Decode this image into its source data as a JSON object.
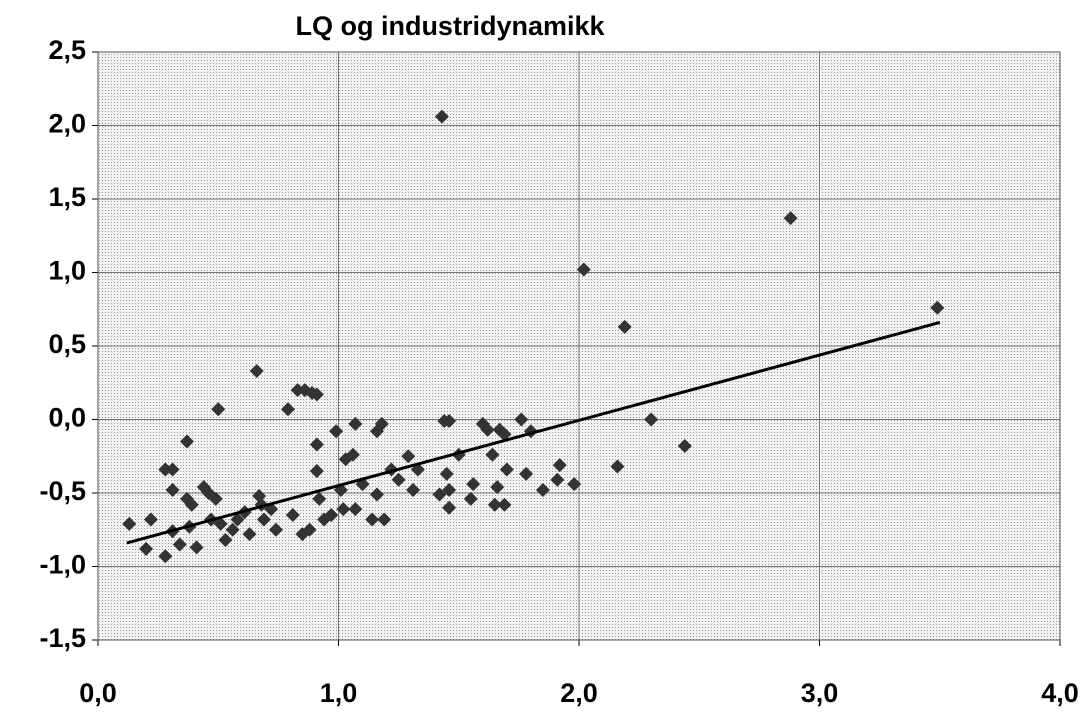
{
  "chart_data": {
    "type": "scatter",
    "title": "LQ og industridynamikk",
    "x": [
      0.13,
      0.2,
      0.22,
      0.28,
      0.31,
      0.28,
      0.31,
      0.31,
      0.34,
      0.37,
      0.37,
      0.39,
      0.38,
      0.41,
      0.44,
      0.46,
      0.47,
      0.49,
      0.5,
      0.51,
      0.53,
      0.56,
      0.58,
      0.61,
      0.63,
      0.66,
      0.67,
      0.68,
      0.69,
      0.72,
      0.74,
      0.79,
      0.81,
      0.83,
      0.86,
      0.89,
      0.91,
      0.85,
      0.88,
      0.91,
      0.91,
      0.92,
      0.94,
      0.97,
      0.99,
      1.01,
      1.02,
      1.03,
      1.06,
      1.07,
      1.07,
      1.1,
      1.14,
      1.16,
      1.16,
      1.18,
      1.19,
      1.22,
      1.25,
      1.29,
      1.31,
      1.33,
      1.43,
      1.44,
      1.46,
      1.45,
      1.42,
      1.46,
      1.46,
      1.5,
      1.55,
      1.56,
      1.6,
      1.62,
      1.64,
      1.65,
      1.66,
      1.67,
      1.69,
      1.7,
      1.69,
      1.76,
      1.78,
      1.8,
      1.85,
      1.91,
      1.92,
      1.98,
      2.02,
      2.16,
      2.19,
      2.3,
      2.44,
      2.88,
      3.49
    ],
    "values": [
      -0.71,
      -0.88,
      -0.68,
      -0.34,
      -0.34,
      -0.93,
      -0.48,
      -0.76,
      -0.85,
      -0.15,
      -0.54,
      -0.58,
      -0.73,
      -0.87,
      -0.46,
      -0.5,
      -0.68,
      -0.54,
      0.07,
      -0.71,
      -0.82,
      -0.75,
      -0.68,
      -0.63,
      -0.78,
      0.33,
      -0.52,
      -0.58,
      -0.68,
      -0.61,
      -0.75,
      0.07,
      -0.65,
      0.2,
      0.2,
      0.18,
      0.17,
      -0.78,
      -0.75,
      -0.35,
      -0.17,
      -0.54,
      -0.68,
      -0.65,
      -0.08,
      -0.48,
      -0.61,
      -0.27,
      -0.24,
      -0.03,
      -0.61,
      -0.44,
      -0.68,
      -0.51,
      -0.08,
      -0.03,
      -0.68,
      -0.34,
      -0.41,
      -0.25,
      -0.48,
      -0.34,
      2.06,
      -0.01,
      -0.01,
      -0.37,
      -0.51,
      -0.48,
      -0.6,
      -0.24,
      -0.54,
      -0.44,
      -0.03,
      -0.07,
      -0.24,
      -0.58,
      -0.46,
      -0.07,
      -0.1,
      -0.34,
      -0.58,
      0.0,
      -0.37,
      -0.08,
      -0.48,
      -0.41,
      -0.31,
      -0.44,
      1.02,
      -0.32,
      0.63,
      0.0,
      -0.18,
      1.37,
      0.76
    ],
    "color": "#333333",
    "trend": {
      "x": [
        0.12,
        3.5
      ],
      "y": [
        -0.84,
        0.66
      ],
      "color": "#000000"
    },
    "xlim": [
      0,
      4
    ],
    "ylim": [
      -1.5,
      2.5
    ],
    "xticks": [
      {
        "value": 0,
        "label": "0,0"
      },
      {
        "value": 1,
        "label": "1,0"
      },
      {
        "value": 2,
        "label": "2,0"
      },
      {
        "value": 3,
        "label": "3,0"
      },
      {
        "value": 4,
        "label": "4,0"
      }
    ],
    "yticks": [
      {
        "value": -1.5,
        "label": "-1,5"
      },
      {
        "value": -1,
        "label": "-1,0"
      },
      {
        "value": -0.5,
        "label": "-0,5"
      },
      {
        "value": 0,
        "label": "0,0"
      },
      {
        "value": 0.5,
        "label": "0,5"
      },
      {
        "value": 1,
        "label": "1,0"
      },
      {
        "value": 1.5,
        "label": "1,5"
      },
      {
        "value": 2,
        "label": "2,0"
      },
      {
        "value": 2.5,
        "label": "2,5"
      }
    ],
    "grid": true
  }
}
